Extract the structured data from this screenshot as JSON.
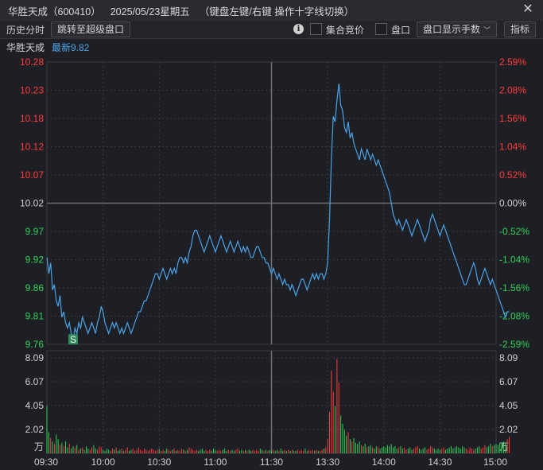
{
  "window": {
    "stock_name": "华胜天成",
    "stock_code": "（600410）",
    "date": "2025/05/23星期五",
    "hint": "（键盘左键/右键 操作十字线切换）"
  },
  "toolbar": {
    "history_label": "历史分时",
    "jump_button": "跳转至超级盘口",
    "auction_label": "集合竞价",
    "orderbook_label": "盘口",
    "display_select": "盘口显示手数",
    "indicator_button": "指标"
  },
  "info": {
    "name": "华胜天成",
    "latest": "最新9.82"
  },
  "colors": {
    "up": "#ff3b3b",
    "down": "#2ed15a",
    "price_line": "#4aa3e8",
    "grid": "#3a3b40",
    "neutral": "#d0d0d0"
  },
  "chart_data": {
    "type": "line",
    "prev_close": 10.02,
    "ylim": [
      9.76,
      10.28
    ],
    "price_ticks": [
      "10.28",
      "10.23",
      "10.18",
      "10.12",
      "10.07",
      "10.02",
      "9.97",
      "9.92",
      "9.86",
      "9.81",
      "9.76"
    ],
    "pct_ticks": [
      "2.59%",
      "2.08%",
      "1.56%",
      "1.04%",
      "0.52%",
      "0.00%",
      "-0.52%",
      "-1.04%",
      "-1.56%",
      "-2.08%",
      "-2.59%"
    ],
    "time_ticks": [
      "09:30",
      "10:00",
      "10:30",
      "11:00",
      "11:30",
      "13:30",
      "14:00",
      "14:30",
      "15:00"
    ],
    "volume_ticks": [
      "8.09",
      "6.07",
      "4.05",
      "2.02"
    ],
    "volume_unit": "万",
    "volume_max": 8.09,
    "sell_marker": "S",
    "sell_marker_minute": 14,
    "price": [
      9.92,
      9.89,
      9.91,
      9.86,
      9.87,
      9.84,
      9.83,
      9.85,
      9.81,
      9.82,
      9.8,
      9.79,
      9.8,
      9.78,
      9.77,
      9.79,
      9.78,
      9.8,
      9.79,
      9.81,
      9.8,
      9.79,
      9.78,
      9.79,
      9.8,
      9.79,
      9.78,
      9.8,
      9.81,
      9.83,
      9.82,
      9.8,
      9.79,
      9.78,
      9.79,
      9.8,
      9.79,
      9.8,
      9.79,
      9.78,
      9.79,
      9.78,
      9.79,
      9.8,
      9.79,
      9.78,
      9.79,
      9.8,
      9.81,
      9.82,
      9.82,
      9.83,
      9.84,
      9.84,
      9.85,
      9.86,
      9.87,
      9.88,
      9.89,
      9.89,
      9.88,
      9.89,
      9.9,
      9.89,
      9.88,
      9.89,
      9.9,
      9.89,
      9.9,
      9.89,
      9.91,
      9.92,
      9.92,
      9.91,
      9.92,
      9.91,
      9.93,
      9.94,
      9.96,
      9.97,
      9.97,
      9.96,
      9.95,
      9.94,
      9.93,
      9.94,
      9.95,
      9.96,
      9.95,
      9.94,
      9.93,
      9.94,
      9.95,
      9.96,
      9.95,
      9.94,
      9.93,
      9.94,
      9.95,
      9.94,
      9.93,
      9.94,
      9.95,
      9.94,
      9.93,
      9.94,
      9.93,
      9.94,
      9.93,
      9.92,
      9.92,
      9.93,
      9.94,
      9.94,
      9.93,
      9.92,
      9.92,
      9.91,
      9.91,
      9.9,
      9.89,
      9.9,
      9.89,
      9.88,
      9.89,
      9.88,
      9.87,
      9.88,
      9.87,
      9.87,
      9.86,
      9.87,
      9.86,
      9.85,
      9.86,
      9.87,
      9.88,
      9.88,
      9.87,
      9.86,
      9.87,
      9.88,
      9.89,
      9.88,
      9.89,
      9.88,
      9.89,
      9.89,
      9.88,
      9.89,
      9.91,
      9.99,
      10.1,
      10.18,
      10.17,
      10.21,
      10.24,
      10.2,
      10.19,
      10.16,
      10.15,
      10.17,
      10.14,
      10.15,
      10.13,
      10.12,
      10.11,
      10.1,
      10.12,
      10.11,
      10.1,
      10.12,
      10.11,
      10.1,
      10.11,
      10.1,
      10.09,
      10.1,
      10.09,
      10.08,
      10.07,
      10.06,
      10.05,
      10.04,
      10.02,
      10.0,
      9.99,
      9.98,
      9.99,
      9.98,
      9.97,
      9.98,
      9.99,
      9.98,
      9.97,
      9.96,
      9.97,
      9.98,
      9.99,
      9.98,
      9.97,
      9.96,
      9.95,
      9.96,
      9.97,
      9.99,
      10.0,
      9.99,
      9.98,
      9.97,
      9.96,
      9.97,
      9.98,
      9.97,
      9.96,
      9.95,
      9.94,
      9.93,
      9.92,
      9.91,
      9.9,
      9.89,
      9.88,
      9.87,
      9.87,
      9.88,
      9.89,
      9.9,
      9.91,
      9.9,
      9.88,
      9.87,
      9.88,
      9.89,
      9.9,
      9.89,
      9.88,
      9.87,
      9.88,
      9.87,
      9.86,
      9.85,
      9.84,
      9.83,
      9.82,
      9.81,
      9.82,
      9.82
    ],
    "volume": [
      4.0,
      1.8,
      1.3,
      1.0,
      0.8,
      1.6,
      1.2,
      0.7,
      0.9,
      0.6,
      1.0,
      0.5,
      0.8,
      0.4,
      0.6,
      0.5,
      0.7,
      0.3,
      0.4,
      0.5,
      0.3,
      0.6,
      0.4,
      0.3,
      0.5,
      0.7,
      0.4,
      0.3,
      0.6,
      0.5,
      0.3,
      0.2,
      0.4,
      0.3,
      0.2,
      0.4,
      0.3,
      0.5,
      0.2,
      0.3,
      0.4,
      0.2,
      0.3,
      0.5,
      0.2,
      0.3,
      0.4,
      0.2,
      0.3,
      0.5,
      0.3,
      0.2,
      0.4,
      0.3,
      0.2,
      0.3,
      0.4,
      0.3,
      0.2,
      0.3,
      0.4,
      0.2,
      0.3,
      0.2,
      0.4,
      0.3,
      0.2,
      0.3,
      0.4,
      0.2,
      0.3,
      0.2,
      0.4,
      0.3,
      0.2,
      0.3,
      0.5,
      0.4,
      0.3,
      0.2,
      0.3,
      0.2,
      0.3,
      0.4,
      0.2,
      0.3,
      0.2,
      0.3,
      0.2,
      0.4,
      0.3,
      0.2,
      0.3,
      0.2,
      0.3,
      0.4,
      0.2,
      0.3,
      0.2,
      0.3,
      0.2,
      0.3,
      0.4,
      0.2,
      0.3,
      0.2,
      0.3,
      0.2,
      0.3,
      0.2,
      0.3,
      0.2,
      0.3,
      0.2,
      0.4,
      0.3,
      0.2,
      0.3,
      0.2,
      0.3,
      0.2,
      0.3,
      0.2,
      0.3,
      0.2,
      0.4,
      0.2,
      0.3,
      0.2,
      0.3,
      0.2,
      0.3,
      0.2,
      0.2,
      0.3,
      0.2,
      0.3,
      0.2,
      0.4,
      0.2,
      0.3,
      0.2,
      0.3,
      0.2,
      0.3,
      0.2,
      0.2,
      0.3,
      0.4,
      0.5,
      1.2,
      3.5,
      7.0,
      5.2,
      4.0,
      8.0,
      6.0,
      3.2,
      2.5,
      2.0,
      1.5,
      1.8,
      1.2,
      1.0,
      1.3,
      0.9,
      0.8,
      1.0,
      0.7,
      0.6,
      0.8,
      0.5,
      0.6,
      0.7,
      0.5,
      0.4,
      0.6,
      0.5,
      0.4,
      0.5,
      0.6,
      0.5,
      0.7,
      0.6,
      0.8,
      0.5,
      0.6,
      0.4,
      0.5,
      0.6,
      0.4,
      0.5,
      0.3,
      0.4,
      0.5,
      0.3,
      0.4,
      0.5,
      0.6,
      0.4,
      0.3,
      0.4,
      0.5,
      0.3,
      0.4,
      0.6,
      0.5,
      0.4,
      0.3,
      0.4,
      0.3,
      0.4,
      0.5,
      0.3,
      0.4,
      0.5,
      0.6,
      0.4,
      0.5,
      0.6,
      0.5,
      0.4,
      0.6,
      0.5,
      0.4,
      0.3,
      0.5,
      0.4,
      0.3,
      0.4,
      0.5,
      0.6,
      0.4,
      0.5,
      0.7,
      0.5,
      0.6,
      0.8,
      0.6,
      0.7,
      0.8,
      0.7,
      0.9,
      0.8,
      1.0,
      0.9,
      1.2,
      1.4
    ]
  }
}
